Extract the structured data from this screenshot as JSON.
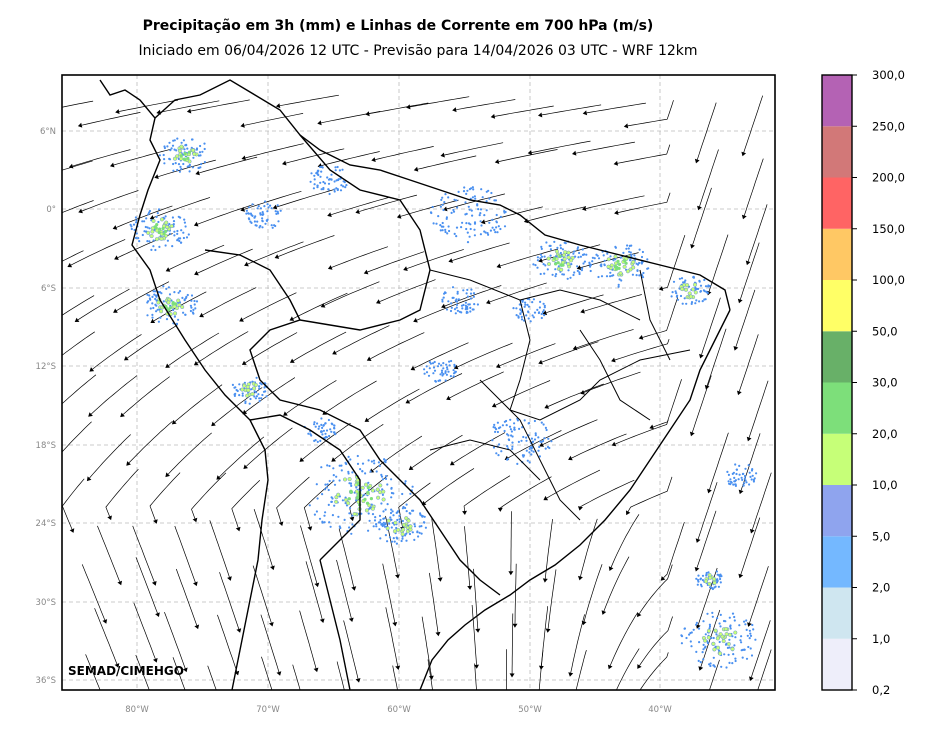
{
  "header": {
    "title": "Precipitação em 3h (mm) e Linhas de Corrente em 700 hPa (m/s)",
    "subtitle": "Iniciado em 06/04/2026 12 UTC - Previsão para 14/04/2026 03 UTC - WRF 12km"
  },
  "map": {
    "credit": "SEMAD/CIMEHGO",
    "lat_ticks": [
      "6°N",
      "0°",
      "6°S",
      "12°S",
      "18°S",
      "24°S",
      "30°S",
      "36°S"
    ],
    "lon_ticks": [
      "80°W",
      "70°W",
      "60°W",
      "50°W",
      "40°W"
    ],
    "gridlines": true
  },
  "colorbar": {
    "labels": [
      "0,2",
      "1,0",
      "2,0",
      "5,0",
      "10,0",
      "20,0",
      "30,0",
      "50,0",
      "100,0",
      "150,0",
      "200,0",
      "250,0",
      "300,0"
    ],
    "colors": [
      "#eeeefa",
      "#cfe6f0",
      "#74b8ff",
      "#8fa4ee",
      "#c6ff78",
      "#7ddf7a",
      "#68b068",
      "#ffff66",
      "#ffc864",
      "#ff6464",
      "#d27878",
      "#b462b4"
    ]
  }
}
